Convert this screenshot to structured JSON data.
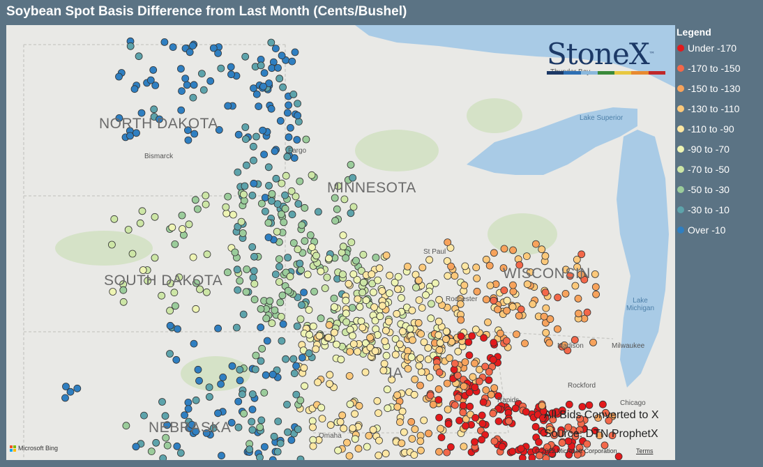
{
  "title": "Soybean Spot Basis Difference from Last Month (Cents/Bushel)",
  "legend": {
    "title": "Legend",
    "items": [
      {
        "label": "Under -170",
        "color": "#e31a1c"
      },
      {
        "label": "-170 to -150",
        "color": "#f3684a"
      },
      {
        "label": "-150 to -130",
        "color": "#f7a35c"
      },
      {
        "label": "-130 to -110",
        "color": "#fcc97b"
      },
      {
        "label": "-110 to -90",
        "color": "#fde7a3"
      },
      {
        "label": "-90 to -70",
        "color": "#eef4b4"
      },
      {
        "label": "-70 to -50",
        "color": "#cde6a6"
      },
      {
        "label": "-50 to -30",
        "color": "#9bcc9b"
      },
      {
        "label": "-30 to -10",
        "color": "#5da3ab"
      },
      {
        "label": "Over -10",
        "color": "#2f7fc1"
      }
    ]
  },
  "map": {
    "state_labels": [
      "NORTH DAKOTA",
      "MINNESOTA",
      "SOUTH DAKOTA",
      "WISCONSIN",
      "NEBRASKA",
      "IA"
    ],
    "city_labels": [
      "Bismarck",
      "Fargo",
      "St Paul",
      "Rochester",
      "Madison",
      "Milwaukee",
      "Rockford",
      "Chicago",
      "Rapids",
      "Omaha",
      "Thunder Bay"
    ],
    "lake_labels": [
      "Lake Superior",
      "Lake Michigan"
    ],
    "source_line1": "All Bids Converted to X",
    "source_line2": "Source: DTN ProphetX",
    "copyright": "© 2022 Microsoft Corporation",
    "terms": "Terms",
    "bing": "Microsoft Bing",
    "colors": {
      "land": "#e9e9e6",
      "water": "#a9cbe6",
      "forest": "#d5e2c7"
    }
  },
  "logo": {
    "text": "StoneX",
    "tm": "™",
    "bar_colors": [
      "#1c3966",
      "#2e6fb3",
      "#8bb8dc",
      "#3a8a3a",
      "#e8c840",
      "#e88a30",
      "#c0282a"
    ]
  }
}
